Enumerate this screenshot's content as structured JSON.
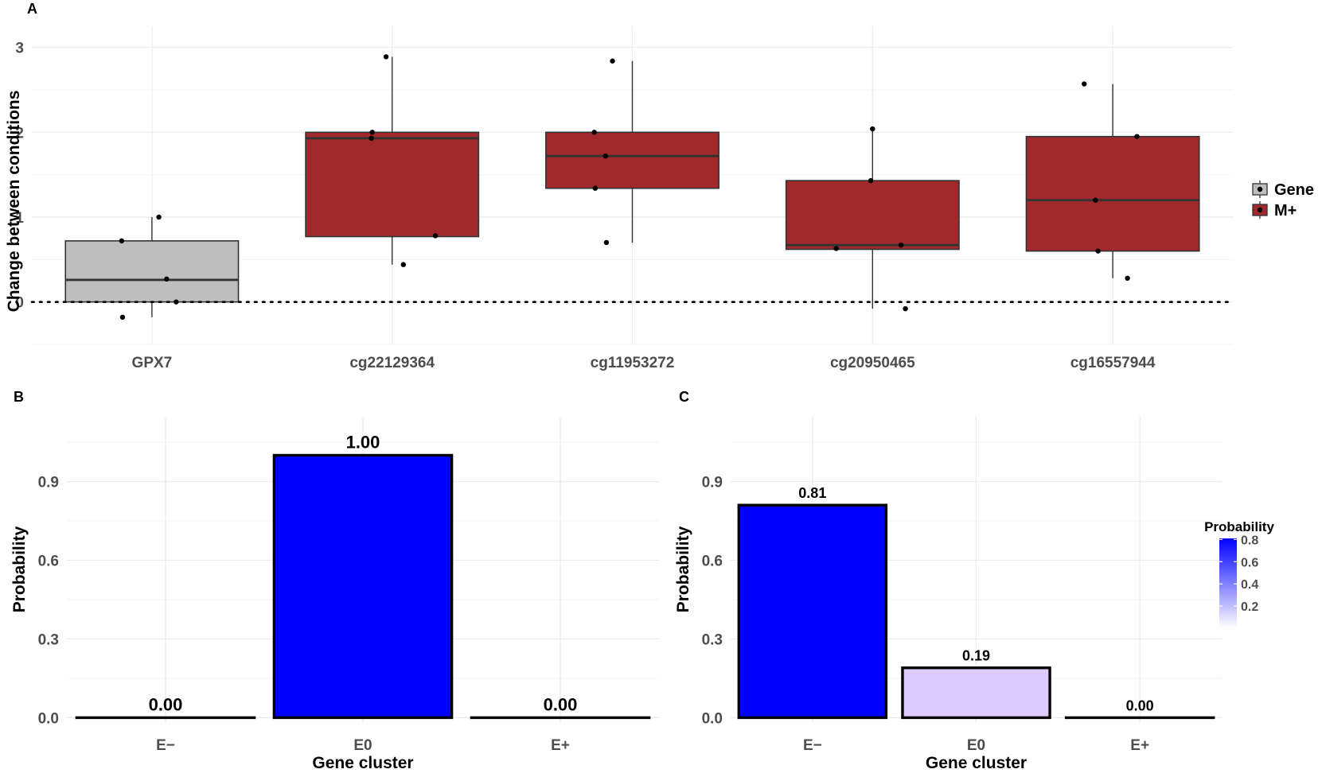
{
  "chart_data": [
    {
      "panel": "A",
      "type": "box",
      "ylabel": "Change between conditions",
      "ylim": [
        -0.5,
        3.25
      ],
      "yticks": [
        0,
        1,
        2,
        3
      ],
      "reference_line": 0,
      "categories": [
        "GPX7",
        "cg22129364",
        "cg11953272",
        "cg20950465",
        "cg16557944"
      ],
      "legend": {
        "placement": "right",
        "items": [
          {
            "name": "Gene",
            "color": "#bebebe"
          },
          {
            "name": "M+",
            "color": "#a2292b"
          }
        ]
      },
      "boxes": [
        {
          "category": "GPX7",
          "group": "Gene",
          "q1": 0.0,
          "median": 0.26,
          "q3": 0.72,
          "whisker_low": -0.18,
          "whisker_high": 1.0,
          "points": [
            [
              -0.35,
              0.72
            ],
            [
              0.08,
              1.0
            ],
            [
              0.17,
              0.27
            ],
            [
              0.28,
              0.0
            ],
            [
              -0.34,
              -0.18
            ]
          ]
        },
        {
          "category": "cg22129364",
          "group": "M+",
          "q1": 0.77,
          "median": 1.93,
          "q3": 2.0,
          "whisker_low": 0.44,
          "whisker_high": 2.89,
          "points": [
            [
              -0.07,
              2.89
            ],
            [
              -0.23,
              2.0
            ],
            [
              -0.24,
              1.93
            ],
            [
              0.5,
              0.78
            ],
            [
              0.13,
              0.44
            ]
          ]
        },
        {
          "category": "cg11953272",
          "group": "M+",
          "q1": 1.34,
          "median": 1.72,
          "q3": 2.0,
          "whisker_low": 0.7,
          "whisker_high": 2.84,
          "points": [
            [
              -0.23,
              2.84
            ],
            [
              -0.44,
              2.0
            ],
            [
              -0.31,
              1.72
            ],
            [
              -0.43,
              1.34
            ],
            [
              -0.3,
              0.7
            ]
          ]
        },
        {
          "category": "cg20950465",
          "group": "M+",
          "q1": 0.62,
          "median": 0.67,
          "q3": 1.43,
          "whisker_low": -0.08,
          "whisker_high": 2.04,
          "points": [
            [
              0.0,
              2.04
            ],
            [
              -0.02,
              1.43
            ],
            [
              -0.42,
              0.63
            ],
            [
              0.33,
              0.67
            ],
            [
              0.38,
              -0.08
            ]
          ]
        },
        {
          "category": "cg16557944",
          "group": "M+",
          "q1": 0.6,
          "median": 1.2,
          "q3": 1.95,
          "whisker_low": 0.28,
          "whisker_high": 2.57,
          "points": [
            [
              -0.33,
              2.57
            ],
            [
              0.28,
              1.95
            ],
            [
              -0.2,
              1.2
            ],
            [
              -0.17,
              0.6
            ],
            [
              0.17,
              0.28
            ]
          ]
        }
      ]
    },
    {
      "panel": "B",
      "type": "bar",
      "xlabel": "Gene cluster",
      "ylabel": "Probability",
      "ylim": [
        -0.02,
        1.15
      ],
      "yticks": [
        0.0,
        0.3,
        0.6,
        0.9
      ],
      "categories": [
        "E−",
        "E0",
        "E+"
      ],
      "values": [
        0.0,
        1.0,
        0.0
      ],
      "labels": [
        "0.00",
        "1.00",
        "0.00"
      ],
      "fills": [
        "#ffffff",
        "#0000ff",
        "#ffffff"
      ]
    },
    {
      "panel": "C",
      "type": "bar",
      "xlabel": "Gene cluster",
      "ylabel": "Probability",
      "ylim": [
        -0.02,
        1.15
      ],
      "yticks": [
        0.0,
        0.3,
        0.6,
        0.9
      ],
      "categories": [
        "E−",
        "E0",
        "E+"
      ],
      "values": [
        0.81,
        0.19,
        0.0
      ],
      "labels": [
        "0.81",
        "0.19",
        "0.00"
      ],
      "fills": [
        "#0000ff",
        "#ddcbfd",
        "#ffffff"
      ],
      "colorbar": {
        "title": "Probability",
        "ticks": [
          "0.8",
          "0.6",
          "0.4",
          "0.2"
        ],
        "low": "#ffffff",
        "high": "#0000ff"
      }
    }
  ]
}
